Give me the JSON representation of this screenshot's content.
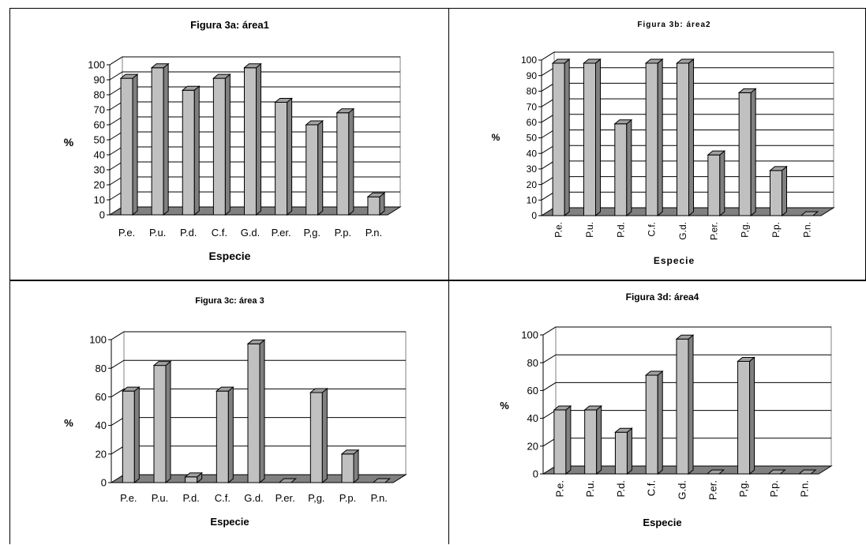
{
  "chart_data": [
    {
      "type": "bar",
      "title": "Figura 3a: área1",
      "xlabel": "Especie",
      "ylabel": "%",
      "ylim": [
        0,
        100
      ],
      "yticks": [
        0,
        10,
        20,
        30,
        40,
        50,
        60,
        70,
        80,
        90,
        100
      ],
      "grid": true,
      "categories": [
        "P.e.",
        "P.u.",
        "P.d.",
        "C.f.",
        "G.d.",
        "P.er.",
        "P,g.",
        "P.p.",
        "P.n."
      ],
      "values": [
        91,
        98,
        83,
        91,
        98,
        75,
        60,
        68,
        12
      ],
      "bar_color": "#c0c0c0",
      "floor_color": "#808080"
    },
    {
      "type": "bar",
      "title": "Figura 3b: área2",
      "xlabel": "Especie",
      "ylabel": "%",
      "ylim": [
        0,
        100
      ],
      "yticks": [
        0,
        10,
        20,
        30,
        40,
        50,
        60,
        70,
        80,
        90,
        100
      ],
      "grid": true,
      "categories": [
        "P.e.",
        "P.u.",
        "P.d.",
        "C.f.",
        "G.d.",
        "P.er.",
        "P,g.",
        "P.p.",
        "P.n."
      ],
      "values": [
        98,
        98,
        59,
        98,
        98,
        39,
        79,
        29,
        0
      ],
      "bar_color": "#c0c0c0",
      "floor_color": "#808080"
    },
    {
      "type": "bar",
      "title": "Figura 3c: área 3",
      "xlabel": "Especie",
      "ylabel": "%",
      "ylim": [
        0,
        100
      ],
      "yticks": [
        0,
        20,
        40,
        60,
        80,
        100
      ],
      "grid": true,
      "categories": [
        "P.e.",
        "P.u.",
        "P.d.",
        "C.f.",
        "G.d.",
        "P.er.",
        "P,g.",
        "P.p.",
        "P.n."
      ],
      "values": [
        64,
        82,
        4,
        64,
        97,
        0,
        63,
        20,
        0
      ],
      "bar_color": "#c0c0c0",
      "floor_color": "#808080"
    },
    {
      "type": "bar",
      "title": "Figura 3d: área4",
      "xlabel": "Especie",
      "ylabel": "%",
      "ylim": [
        0,
        100
      ],
      "yticks": [
        0,
        20,
        40,
        60,
        80,
        100
      ],
      "grid": true,
      "categories": [
        "P.e.",
        "P.u.",
        "P.d.",
        "C.f.",
        "G.d.",
        "P.er.",
        "P,g.",
        "P.p.",
        "P.n."
      ],
      "values": [
        46,
        46,
        30,
        71,
        97,
        0,
        81,
        0,
        0
      ],
      "bar_color": "#c0c0c0",
      "floor_color": "#808080"
    }
  ]
}
